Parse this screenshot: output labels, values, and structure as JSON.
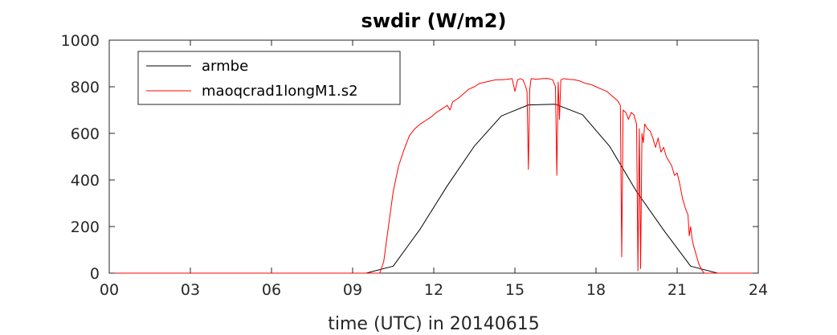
{
  "chart_data": {
    "type": "line",
    "title": "swdir  (W/m2)",
    "xlabel": "time (UTC) in 20140615",
    "ylabel": "",
    "xlim": [
      0,
      24
    ],
    "ylim": [
      0,
      1000
    ],
    "xticks": [
      "00",
      "03",
      "06",
      "09",
      "12",
      "15",
      "18",
      "21",
      "24"
    ],
    "xtick_values": [
      0,
      3,
      6,
      9,
      12,
      15,
      18,
      21,
      24
    ],
    "yticks": [
      "0",
      "200",
      "400",
      "600",
      "800",
      "1000"
    ],
    "ytick_values": [
      0,
      200,
      400,
      600,
      800,
      1000
    ],
    "grid": false,
    "legend_position": "top-left",
    "series": [
      {
        "name": "armbe",
        "color": "#000000",
        "x": [
          0,
          9.5,
          10.5,
          11.5,
          12.5,
          13.5,
          14.5,
          15.5,
          16.5,
          17.5,
          18.5,
          19.5,
          20.5,
          21.5,
          22.5,
          24
        ],
        "y": [
          0,
          0,
          30,
          190,
          375,
          545,
          675,
          722,
          725,
          680,
          545,
          350,
          185,
          30,
          0,
          0
        ]
      },
      {
        "name": "maoqcrad1longM1.s2",
        "color": "#ff0000",
        "x": [
          0,
          10.0,
          10.15,
          10.3,
          10.5,
          10.7,
          10.9,
          11.1,
          11.3,
          11.5,
          11.7,
          11.9,
          12.1,
          12.3,
          12.5,
          12.6,
          12.7,
          12.9,
          13.1,
          13.3,
          13.5,
          13.7,
          13.9,
          14.1,
          14.3,
          14.5,
          14.7,
          14.9,
          15.0,
          15.1,
          15.2,
          15.3,
          15.4,
          15.45,
          15.5,
          15.55,
          15.6,
          15.8,
          16.0,
          16.2,
          16.4,
          16.5,
          16.55,
          16.6,
          16.65,
          16.7,
          16.8,
          17.0,
          17.2,
          17.4,
          17.6,
          17.8,
          18.0,
          18.2,
          18.4,
          18.6,
          18.8,
          18.9,
          18.95,
          19.0,
          19.1,
          19.2,
          19.3,
          19.4,
          19.5,
          19.55,
          19.6,
          19.65,
          19.7,
          19.75,
          19.8,
          19.9,
          20.0,
          20.1,
          20.2,
          20.3,
          20.4,
          20.5,
          20.6,
          20.7,
          20.8,
          20.9,
          21.0,
          21.1,
          21.2,
          21.3,
          21.4,
          21.45,
          21.5,
          21.55,
          21.6,
          21.7,
          21.8,
          21.9,
          22.0,
          24
        ],
        "y": [
          0,
          0,
          50,
          180,
          350,
          460,
          530,
          590,
          620,
          640,
          655,
          670,
          690,
          705,
          720,
          700,
          735,
          750,
          770,
          790,
          800,
          815,
          820,
          825,
          830,
          830,
          832,
          835,
          780,
          830,
          835,
          830,
          800,
          780,
          445,
          790,
          835,
          832,
          835,
          836,
          830,
          800,
          420,
          820,
          660,
          830,
          835,
          832,
          830,
          825,
          815,
          810,
          800,
          790,
          780,
          760,
          740,
          720,
          70,
          700,
          690,
          660,
          690,
          680,
          640,
          10,
          620,
          20,
          600,
          560,
          640,
          620,
          610,
          580,
          540,
          580,
          520,
          540,
          500,
          480,
          460,
          420,
          430,
          380,
          320,
          280,
          250,
          160,
          200,
          150,
          120,
          80,
          40,
          15,
          0,
          0
        ]
      }
    ]
  }
}
